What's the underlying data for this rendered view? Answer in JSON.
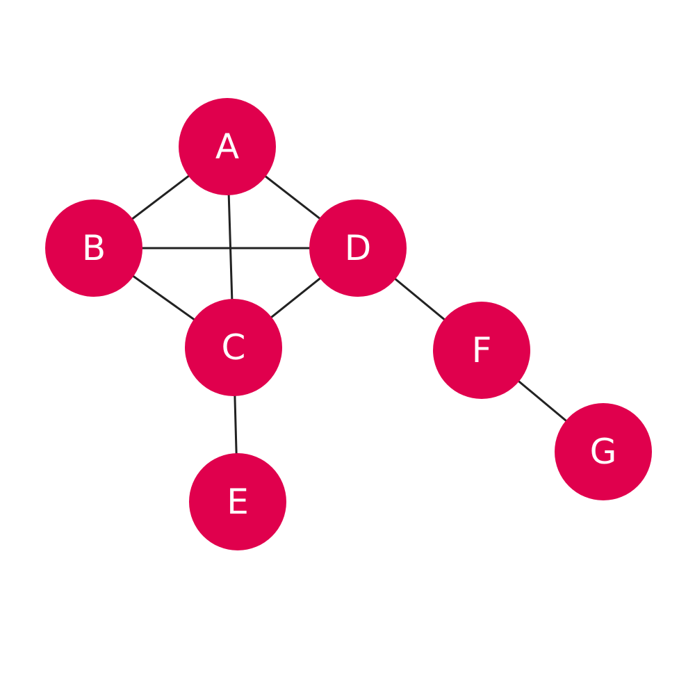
{
  "graph": {
    "node_color": "#E0004D",
    "label_color": "#FFFFFF",
    "edge_color": "#222222",
    "nodes": [
      {
        "id": "A",
        "label": "A"
      },
      {
        "id": "B",
        "label": "B"
      },
      {
        "id": "C",
        "label": "C"
      },
      {
        "id": "D",
        "label": "D"
      },
      {
        "id": "E",
        "label": "E"
      },
      {
        "id": "F",
        "label": "F"
      },
      {
        "id": "G",
        "label": "G"
      }
    ],
    "edges": [
      {
        "from": "A",
        "to": "B"
      },
      {
        "from": "A",
        "to": "C"
      },
      {
        "from": "A",
        "to": "D"
      },
      {
        "from": "B",
        "to": "C"
      },
      {
        "from": "B",
        "to": "D"
      },
      {
        "from": "C",
        "to": "D"
      },
      {
        "from": "C",
        "to": "E"
      },
      {
        "from": "D",
        "to": "F"
      },
      {
        "from": "F",
        "to": "G"
      }
    ]
  }
}
